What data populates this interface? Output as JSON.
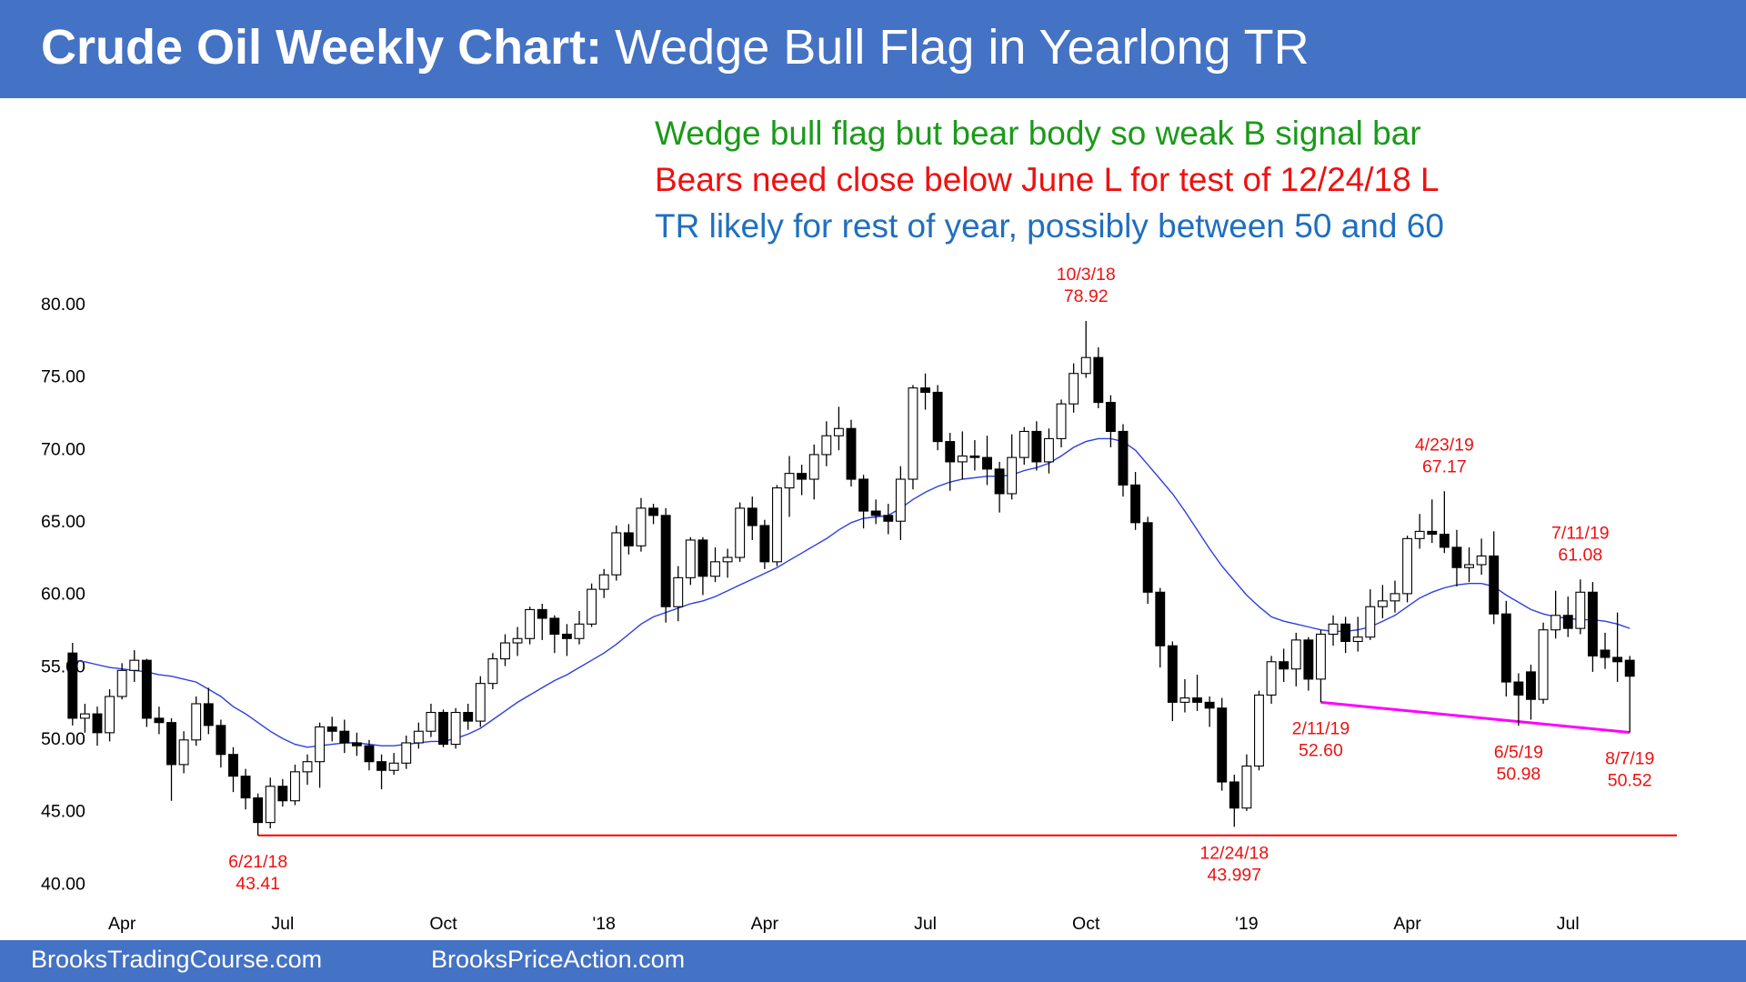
{
  "chart_data": {
    "type": "candlestick",
    "title": [
      "Crude Oil Weekly Chart:",
      "Wedge Bull Flag in Yearlong TR"
    ],
    "notes": [
      {
        "text": "Wedge bull flag but bear body so weak B signal bar",
        "color": "#1a9a1a"
      },
      {
        "text": "Bears need close below June L for test of 12/24/18 L",
        "color": "#ee1111"
      },
      {
        "text": "TR likely for rest of year, possibly between 50 and 60",
        "color": "#1f6fbf"
      }
    ],
    "categories": [
      null,
      null,
      null,
      null,
      "Apr",
      null,
      null,
      null,
      null,
      null,
      null,
      null,
      null,
      null,
      null,
      null,
      null,
      "Jul",
      null,
      null,
      null,
      null,
      null,
      null,
      null,
      null,
      null,
      null,
      null,
      null,
      "Oct",
      null,
      null,
      null,
      null,
      null,
      null,
      null,
      null,
      null,
      null,
      null,
      null,
      "'18",
      null,
      null,
      null,
      null,
      null,
      null,
      null,
      null,
      null,
      null,
      null,
      null,
      "Apr",
      null,
      null,
      null,
      null,
      null,
      null,
      null,
      null,
      null,
      null,
      null,
      null,
      "Jul",
      null,
      null,
      null,
      null,
      null,
      null,
      null,
      null,
      null,
      null,
      null,
      null,
      "Oct",
      null,
      null,
      null,
      null,
      null,
      null,
      null,
      null,
      null,
      null,
      null,
      null,
      "'19",
      null,
      null,
      null,
      null,
      null,
      null,
      null,
      null,
      null,
      null,
      null,
      null,
      "Apr",
      null,
      null,
      null,
      null,
      null,
      null,
      null,
      null,
      null,
      null,
      null,
      null,
      "Jul",
      null,
      null,
      null,
      null,
      null
    ],
    "candles": {
      "up_color": "#ffffff",
      "down_color": "#000000",
      "open": [
        56.0,
        51.5,
        51.8,
        50.5,
        53.0,
        54.8,
        55.5,
        51.5,
        51.2,
        48.3,
        50.0,
        52.5,
        51.0,
        49.0,
        47.5,
        46.0,
        44.3,
        46.8,
        45.8,
        47.8,
        48.5,
        50.9,
        50.6,
        49.8,
        49.6,
        48.5,
        47.9,
        48.4,
        49.8,
        50.6,
        51.9,
        49.7,
        51.9,
        51.3,
        53.9,
        55.6,
        56.7,
        57.0,
        59.0,
        58.4,
        57.3,
        57.0,
        58.0,
        60.4,
        61.4,
        64.3,
        63.4,
        66.0,
        65.5,
        59.2,
        61.2,
        63.8,
        61.3,
        62.3,
        62.6,
        66.0,
        64.8,
        62.3,
        67.4,
        68.4,
        68.0,
        69.7,
        71.0,
        71.5,
        68.0,
        65.8,
        65.5,
        65.1,
        68.0,
        74.3,
        74.0,
        70.6,
        69.2,
        69.6,
        69.5,
        68.7,
        67.0,
        69.5,
        71.3,
        69.2,
        70.8,
        73.2,
        75.3,
        76.4,
        73.3,
        71.3,
        67.6,
        65.0,
        60.2,
        56.5,
        52.6,
        52.9,
        52.6,
        52.2,
        47.1,
        45.3,
        48.2,
        53.1,
        55.4,
        54.9,
        56.9,
        54.2,
        57.3,
        58.0,
        56.8,
        57.1,
        59.2,
        59.6,
        60.1,
        63.9,
        64.4,
        64.2,
        63.3,
        61.9,
        62.1,
        62.7,
        58.7,
        54.0,
        54.7,
        52.8,
        57.6,
        58.6,
        57.7,
        60.2,
        56.2,
        55.7,
        55.5
      ],
      "high": [
        56.7,
        52.5,
        52.3,
        53.5,
        55.3,
        56.2,
        55.6,
        52.3,
        51.5,
        50.6,
        53.0,
        53.6,
        51.4,
        49.5,
        48.0,
        46.3,
        47.4,
        47.3,
        48.3,
        49.0,
        51.2,
        51.6,
        51.4,
        50.5,
        50.0,
        49.0,
        49.1,
        50.3,
        51.2,
        52.5,
        52.1,
        52.2,
        52.5,
        54.4,
        56.0,
        57.3,
        57.8,
        59.2,
        59.4,
        58.6,
        58.0,
        58.9,
        60.8,
        61.8,
        64.8,
        64.9,
        66.7,
        66.3,
        66.0,
        62.0,
        64.0,
        64.0,
        63.3,
        63.2,
        66.4,
        66.8,
        65.2,
        67.6,
        69.6,
        69.0,
        70.4,
        72.0,
        73.0,
        72.1,
        68.3,
        66.6,
        66.3,
        68.9,
        74.5,
        75.3,
        74.5,
        71.2,
        71.3,
        70.7,
        71.0,
        69.2,
        71.1,
        71.6,
        72.0,
        71.5,
        73.5,
        76.0,
        78.92,
        77.1,
        73.8,
        71.8,
        68.5,
        65.4,
        60.5,
        56.8,
        54.2,
        54.5,
        53.0,
        52.9,
        47.6,
        49.0,
        53.4,
        55.8,
        56.3,
        57.4,
        57.1,
        57.6,
        58.6,
        58.5,
        58.5,
        60.4,
        60.7,
        61.0,
        64.1,
        65.6,
        66.6,
        67.17,
        64.5,
        63.3,
        63.9,
        64.4,
        59.6,
        54.6,
        55.2,
        58.1,
        60.3,
        59.9,
        61.08,
        60.9,
        57.4,
        58.8,
        55.8
      ],
      "low": [
        51.0,
        50.5,
        49.6,
        49.9,
        52.8,
        54.0,
        50.9,
        50.4,
        45.8,
        47.7,
        49.6,
        50.4,
        48.1,
        46.4,
        45.2,
        43.41,
        43.9,
        45.4,
        45.5,
        46.9,
        46.7,
        49.9,
        49.1,
        48.9,
        47.9,
        46.6,
        47.6,
        48.0,
        49.4,
        50.2,
        49.5,
        49.4,
        50.7,
        50.9,
        53.5,
        55.1,
        55.8,
        56.6,
        56.9,
        56.0,
        55.8,
        56.6,
        57.8,
        59.8,
        61.0,
        62.8,
        63.0,
        64.9,
        58.1,
        58.2,
        60.7,
        60.0,
        60.9,
        61.2,
        62.3,
        63.8,
        61.8,
        62.0,
        65.4,
        66.9,
        66.6,
        68.9,
        70.0,
        67.5,
        64.6,
        64.9,
        64.2,
        63.8,
        67.3,
        72.8,
        70.0,
        67.2,
        68.0,
        68.6,
        67.6,
        65.7,
        66.6,
        69.0,
        68.6,
        68.4,
        70.2,
        72.6,
        75.0,
        72.9,
        70.2,
        66.8,
        64.5,
        59.4,
        55.0,
        51.3,
        51.9,
        52.0,
        50.9,
        46.5,
        43.997,
        45.1,
        47.9,
        52.5,
        54.0,
        53.7,
        53.4,
        52.6,
        56.5,
        56.0,
        56.1,
        56.9,
        58.4,
        58.8,
        59.5,
        63.2,
        63.6,
        62.9,
        60.6,
        60.9,
        61.4,
        58.0,
        53.0,
        50.98,
        51.4,
        52.5,
        57.0,
        57.1,
        57.3,
        54.7,
        54.9,
        54.0,
        50.52
      ],
      "close": [
        51.5,
        51.8,
        50.5,
        53.0,
        54.8,
        55.5,
        51.5,
        51.2,
        48.3,
        50.0,
        52.5,
        51.0,
        49.0,
        47.5,
        46.0,
        44.3,
        46.8,
        45.8,
        47.8,
        48.5,
        50.9,
        50.6,
        49.8,
        49.6,
        48.5,
        47.9,
        48.4,
        49.8,
        50.6,
        51.9,
        49.7,
        51.9,
        51.3,
        53.9,
        55.6,
        56.7,
        57.0,
        59.0,
        58.4,
        57.3,
        57.0,
        58.0,
        60.4,
        61.4,
        64.3,
        63.4,
        66.0,
        65.5,
        59.2,
        61.2,
        63.8,
        61.3,
        62.3,
        62.6,
        66.0,
        64.8,
        62.3,
        67.4,
        68.4,
        68.0,
        69.7,
        71.0,
        71.5,
        68.0,
        65.8,
        65.5,
        65.1,
        68.0,
        74.3,
        74.0,
        70.6,
        69.2,
        69.6,
        69.5,
        68.7,
        67.0,
        69.5,
        71.3,
        69.2,
        70.8,
        73.2,
        75.3,
        76.4,
        73.3,
        71.3,
        67.6,
        65.0,
        60.2,
        56.5,
        52.6,
        52.9,
        52.6,
        52.2,
        47.1,
        45.3,
        48.2,
        53.1,
        55.4,
        54.9,
        56.9,
        54.2,
        57.3,
        58.0,
        56.8,
        57.1,
        59.2,
        59.6,
        60.1,
        63.9,
        64.4,
        64.2,
        63.3,
        61.9,
        62.1,
        62.7,
        58.7,
        54.0,
        53.1,
        52.8,
        57.6,
        58.6,
        57.7,
        60.2,
        55.8,
        55.7,
        55.4,
        54.4
      ]
    },
    "moving_average": {
      "color": "#2b3fe0",
      "values": [
        55.5,
        55.4,
        55.2,
        55.0,
        54.9,
        54.8,
        54.7,
        54.5,
        54.4,
        54.2,
        54.0,
        53.5,
        53.0,
        52.3,
        51.8,
        51.2,
        50.6,
        50.1,
        49.7,
        49.5,
        49.6,
        49.7,
        49.8,
        49.8,
        49.7,
        49.6,
        49.6,
        49.7,
        49.8,
        49.9,
        49.9,
        50.1,
        50.4,
        50.8,
        51.4,
        52.0,
        52.6,
        53.1,
        53.6,
        54.1,
        54.5,
        55.0,
        55.5,
        56.0,
        56.6,
        57.3,
        58.0,
        58.5,
        58.8,
        59.1,
        59.4,
        59.6,
        59.9,
        60.3,
        60.7,
        61.1,
        61.5,
        61.9,
        62.4,
        62.9,
        63.4,
        63.9,
        64.5,
        65.0,
        65.3,
        65.4,
        65.5,
        66.0,
        66.6,
        67.1,
        67.5,
        67.8,
        68.0,
        68.1,
        68.2,
        68.2,
        68.3,
        68.6,
        68.8,
        69.1,
        69.6,
        70.2,
        70.6,
        70.8,
        70.8,
        70.6,
        70.0,
        69.0,
        68.0,
        67.0,
        65.8,
        64.5,
        63.2,
        62.0,
        61.0,
        60.0,
        59.2,
        58.5,
        58.2,
        58.0,
        57.8,
        57.6,
        57.5,
        57.5,
        57.6,
        57.8,
        58.2,
        58.6,
        59.2,
        59.8,
        60.2,
        60.5,
        60.7,
        60.8,
        60.8,
        60.6,
        60.0,
        59.5,
        59.0,
        58.7,
        58.5,
        58.4,
        58.3,
        58.3,
        58.2,
        58.0,
        57.7
      ]
    },
    "annotations": [
      {
        "date": "6/21/18",
        "price": 43.41
      },
      {
        "date": "10/3/18",
        "price": 78.92
      },
      {
        "date": "12/24/18",
        "price": 43.997
      },
      {
        "date": "2/11/19",
        "price": {
          "value": 52.6,
          "label": "52.60"
        }
      },
      {
        "date": "4/23/19",
        "price": 67.17
      },
      {
        "date": "6/5/19",
        "price": 50.98
      },
      {
        "date": "7/11/19",
        "price": 61.08
      },
      {
        "date": "8/7/19",
        "price": 50.52
      }
    ],
    "annotation_color": "#ee1111",
    "support_color": "#ff0000",
    "wedge_color": "#ff00ff",
    "ylim": [
      38.5,
      82
    ],
    "yticks": [
      {
        "value": 40,
        "label": "40.00"
      },
      {
        "value": 45,
        "label": "45.00"
      },
      {
        "value": 50,
        "label": "50.00"
      },
      {
        "value": 55,
        "label": "55.00"
      },
      {
        "value": 60,
        "label": "60.00"
      },
      {
        "value": 65,
        "label": "65.00"
      },
      {
        "value": 70,
        "label": "70.00"
      },
      {
        "value": 75,
        "label": "75.00"
      },
      {
        "value": 80,
        "label": "80.00"
      }
    ],
    "grid": false
  },
  "footer": [
    "BrooksTradingCourse.com",
    "BrooksPriceAction.com"
  ]
}
